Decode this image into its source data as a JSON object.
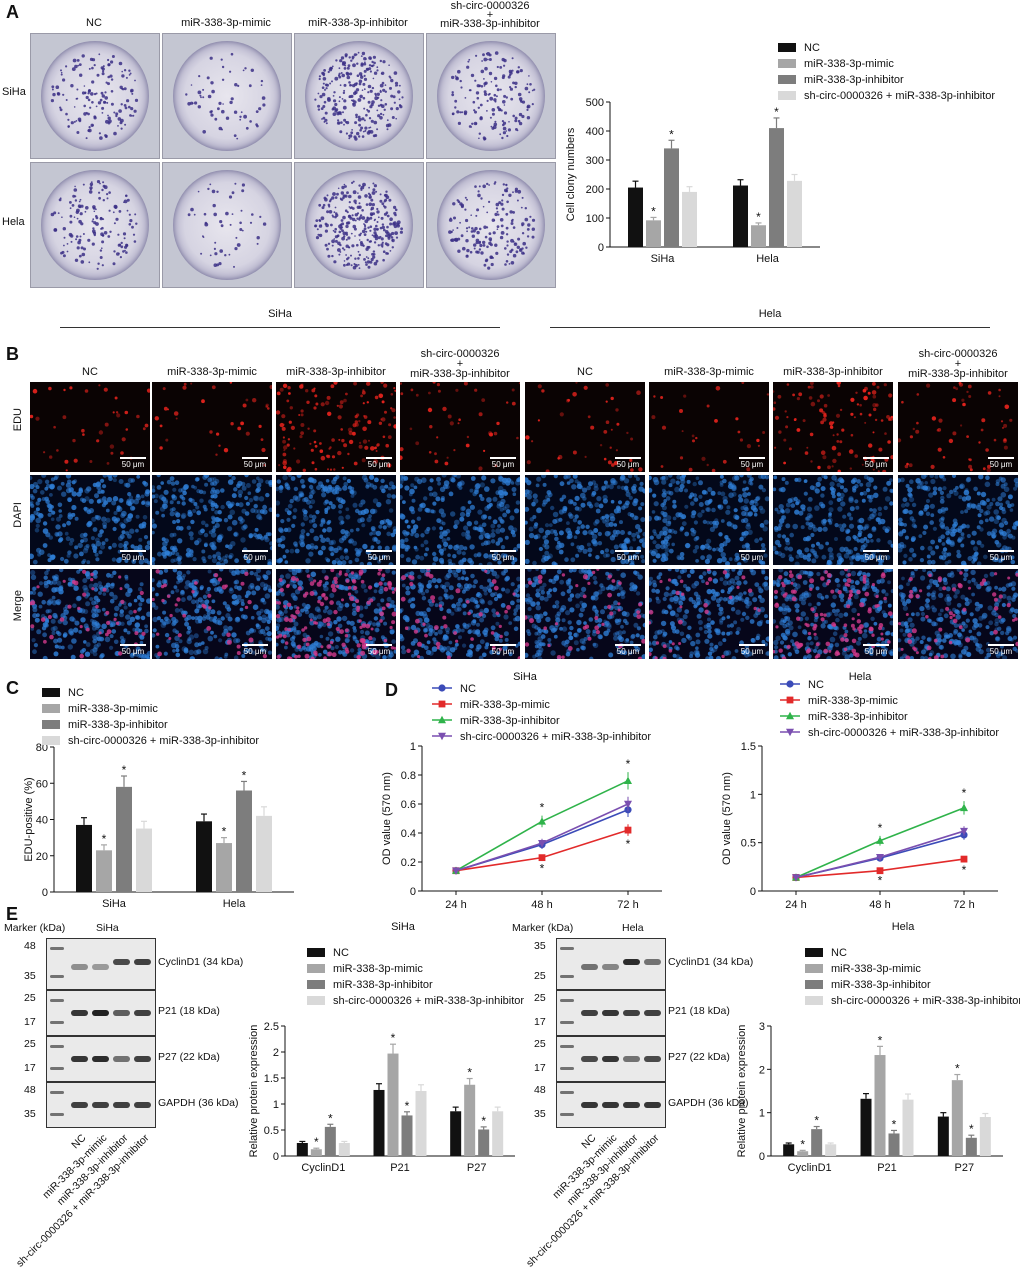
{
  "panel_labels": [
    "A",
    "B",
    "C",
    "D",
    "E"
  ],
  "panelA": {
    "columns": [
      "NC",
      "miR-338-3p-mimic",
      "miR-338-3p-inhibitor",
      "sh-circ-0000326",
      "+",
      "miR-338-3p-inhibitor"
    ],
    "rows": [
      "SiHa",
      "Hela"
    ]
  },
  "panelB": {
    "groups": [
      "SiHa",
      "Hela"
    ],
    "columns": [
      "NC",
      "miR-338-3p-mimic",
      "miR-338-3p-inhibitor",
      "sh-circ-0000326",
      "+",
      "miR-338-3p-inhibitor"
    ],
    "rows": [
      "EDU",
      "DAPI",
      "Merge"
    ],
    "scale": "50 μm"
  },
  "panelE": {
    "marker_label": "Marker (kDa)",
    "siha_title": "SiHa",
    "hela_title": "Hela",
    "siha_markers": [
      "48",
      "35",
      "25",
      "17",
      "25",
      "17",
      "48",
      "35"
    ],
    "hela_markers": [
      "35",
      "25",
      "25",
      "17",
      "25",
      "17",
      "48",
      "35"
    ],
    "bands": [
      "CyclinD1 (34 kDa)",
      "P21 (18 kDa)",
      "P27 (22 kDa)",
      "GAPDH (36 kDa)"
    ],
    "lane_labels": [
      "NC",
      "miR-338-3p-mimic",
      "miR-338-3p-inhibitor",
      "sh-circ-0000326 + miR-338-3p-inhibitor"
    ]
  },
  "colors": {
    "nc": "#111111",
    "mimic": "#a6a6a6",
    "inhibitor": "#7d7d7d",
    "combo": "#d9d9d9",
    "line_nc": "#3b4bb8",
    "line_mimic": "#e22a2a",
    "line_inhibitor": "#2fb34a",
    "line_combo": "#7a4fb0"
  },
  "chart_data": [
    {
      "id": "A-bar",
      "type": "bar",
      "categories": [
        "SiHa",
        "Hela"
      ],
      "ylabel": "Cell clony numbers",
      "ylim": [
        0,
        500
      ],
      "yticks": [
        0,
        100,
        200,
        300,
        400,
        500
      ],
      "legend": [
        "NC",
        "miR-338-3p-mimic",
        "miR-338-3p-inhibitor",
        "sh-circ-0000326 + miR-338-3p-inhibitor"
      ],
      "series": [
        {
          "name": "NC",
          "values": [
            205,
            212
          ],
          "err": [
            22,
            20
          ]
        },
        {
          "name": "miR-338-3p-mimic",
          "values": [
            92,
            75
          ],
          "err": [
            10,
            8
          ],
          "sig": [
            true,
            true
          ]
        },
        {
          "name": "miR-338-3p-inhibitor",
          "values": [
            340,
            410
          ],
          "err": [
            28,
            35
          ],
          "sig": [
            true,
            true
          ]
        },
        {
          "name": "sh-circ-0000326 + miR-338-3p-inhibitor",
          "values": [
            190,
            228
          ],
          "err": [
            18,
            22
          ]
        }
      ]
    },
    {
      "id": "C-bar",
      "type": "bar",
      "categories": [
        "SiHa",
        "Hela"
      ],
      "ylabel": "EDU-positive (%)",
      "ylim": [
        0,
        80
      ],
      "yticks": [
        0,
        20,
        40,
        60,
        80
      ],
      "legend": [
        "NC",
        "miR-338-3p-mimic",
        "miR-338-3p-inhibitor",
        "sh-circ-0000326 + miR-338-3p-inhibitor"
      ],
      "series": [
        {
          "name": "NC",
          "values": [
            37,
            39
          ],
          "err": [
            4,
            4
          ]
        },
        {
          "name": "miR-338-3p-mimic",
          "values": [
            23,
            27
          ],
          "err": [
            3,
            3
          ],
          "sig": [
            true,
            true
          ]
        },
        {
          "name": "miR-338-3p-inhibitor",
          "values": [
            58,
            56
          ],
          "err": [
            6,
            5
          ],
          "sig": [
            true,
            true
          ]
        },
        {
          "name": "sh-circ-0000326 + miR-338-3p-inhibitor",
          "values": [
            35,
            42
          ],
          "err": [
            4,
            5
          ]
        }
      ]
    },
    {
      "id": "D-siha",
      "type": "line",
      "title": "SiHa",
      "x": [
        "24 h",
        "48 h",
        "72 h"
      ],
      "ylabel": "OD value (570 nm)",
      "ylim": [
        0,
        1.0
      ],
      "yticks": [
        0,
        0.2,
        0.4,
        0.6,
        0.8,
        1.0
      ],
      "legend": [
        "NC",
        "miR-338-3p-mimic",
        "miR-338-3p-inhibitor",
        "sh-circ-0000326 + miR-338-3p-inhibitor"
      ],
      "series": [
        {
          "name": "NC",
          "values": [
            0.14,
            0.32,
            0.56
          ],
          "err": [
            0.01,
            0.03,
            0.05
          ]
        },
        {
          "name": "miR-338-3p-mimic",
          "values": [
            0.14,
            0.23,
            0.42
          ],
          "err": [
            0.01,
            0.02,
            0.04
          ],
          "sig": [
            false,
            true,
            true
          ]
        },
        {
          "name": "miR-338-3p-inhibitor",
          "values": [
            0.14,
            0.48,
            0.76
          ],
          "err": [
            0.01,
            0.04,
            0.06
          ],
          "sig": [
            false,
            true,
            true
          ]
        },
        {
          "name": "sh-circ-0000326 + miR-338-3p-inhibitor",
          "values": [
            0.14,
            0.33,
            0.6
          ],
          "err": [
            0.01,
            0.03,
            0.05
          ]
        }
      ]
    },
    {
      "id": "D-hela",
      "type": "line",
      "title": "Hela",
      "x": [
        "24 h",
        "48 h",
        "72 h"
      ],
      "ylabel": "OD value (570 nm)",
      "ylim": [
        0,
        1.5
      ],
      "yticks": [
        0,
        0.5,
        1.0,
        1.5
      ],
      "legend": [
        "NC",
        "miR-338-3p-mimic",
        "miR-338-3p-inhibitor",
        "sh-circ-0000326 + miR-338-3p-inhibitor"
      ],
      "series": [
        {
          "name": "NC",
          "values": [
            0.14,
            0.34,
            0.58
          ],
          "err": [
            0.01,
            0.03,
            0.05
          ]
        },
        {
          "name": "miR-338-3p-mimic",
          "values": [
            0.14,
            0.21,
            0.33
          ],
          "err": [
            0.01,
            0.02,
            0.03
          ],
          "sig": [
            false,
            true,
            true
          ]
        },
        {
          "name": "miR-338-3p-inhibitor",
          "values": [
            0.14,
            0.52,
            0.86
          ],
          "err": [
            0.01,
            0.05,
            0.07
          ],
          "sig": [
            false,
            true,
            true
          ]
        },
        {
          "name": "sh-circ-0000326 + miR-338-3p-inhibitor",
          "values": [
            0.14,
            0.35,
            0.62
          ],
          "err": [
            0.01,
            0.03,
            0.05
          ]
        }
      ]
    },
    {
      "id": "E-siha",
      "type": "bar",
      "title": "SiHa",
      "categories": [
        "CyclinD1",
        "P21",
        "P27"
      ],
      "ylabel": "Relative protein expression",
      "ylim": [
        0,
        2.5
      ],
      "yticks": [
        0,
        0.5,
        1.0,
        1.5,
        2.0,
        2.5
      ],
      "legend": [
        "NC",
        "miR-338-3p-mimic",
        "miR-338-3p-inhibitor",
        "sh-circ-0000326 + miR-338-3p-inhibitor"
      ],
      "series": [
        {
          "name": "NC",
          "values": [
            0.25,
            1.27,
            0.86
          ],
          "err": [
            0.03,
            0.12,
            0.08
          ]
        },
        {
          "name": "miR-338-3p-mimic",
          "values": [
            0.13,
            1.97,
            1.37
          ],
          "err": [
            0.02,
            0.18,
            0.12
          ],
          "sig": [
            true,
            true,
            true
          ]
        },
        {
          "name": "miR-338-3p-inhibitor",
          "values": [
            0.56,
            0.78,
            0.51
          ],
          "err": [
            0.05,
            0.07,
            0.05
          ],
          "sig": [
            true,
            true,
            true
          ]
        },
        {
          "name": "sh-circ-0000326 + miR-338-3p-inhibitor",
          "values": [
            0.25,
            1.25,
            0.86
          ],
          "err": [
            0.03,
            0.12,
            0.08
          ]
        }
      ]
    },
    {
      "id": "E-hela",
      "type": "bar",
      "title": "Hela",
      "categories": [
        "CyclinD1",
        "P21",
        "P27"
      ],
      "ylabel": "Relative protein expression",
      "ylim": [
        0,
        3
      ],
      "yticks": [
        0,
        1,
        2,
        3
      ],
      "legend": [
        "NC",
        "miR-338-3p-mimic",
        "miR-338-3p-inhibitor",
        "sh-circ-0000326 + miR-338-3p-inhibitor"
      ],
      "series": [
        {
          "name": "NC",
          "values": [
            0.27,
            1.32,
            0.91
          ],
          "err": [
            0.03,
            0.12,
            0.09
          ]
        },
        {
          "name": "miR-338-3p-mimic",
          "values": [
            0.11,
            2.33,
            1.75
          ],
          "err": [
            0.02,
            0.2,
            0.13
          ],
          "sig": [
            true,
            true,
            true
          ]
        },
        {
          "name": "miR-338-3p-inhibitor",
          "values": [
            0.62,
            0.52,
            0.42
          ],
          "err": [
            0.06,
            0.07,
            0.06
          ],
          "sig": [
            true,
            true,
            true
          ]
        },
        {
          "name": "sh-circ-0000326 + miR-338-3p-inhibitor",
          "values": [
            0.27,
            1.3,
            0.9
          ],
          "err": [
            0.03,
            0.13,
            0.08
          ]
        }
      ]
    }
  ]
}
